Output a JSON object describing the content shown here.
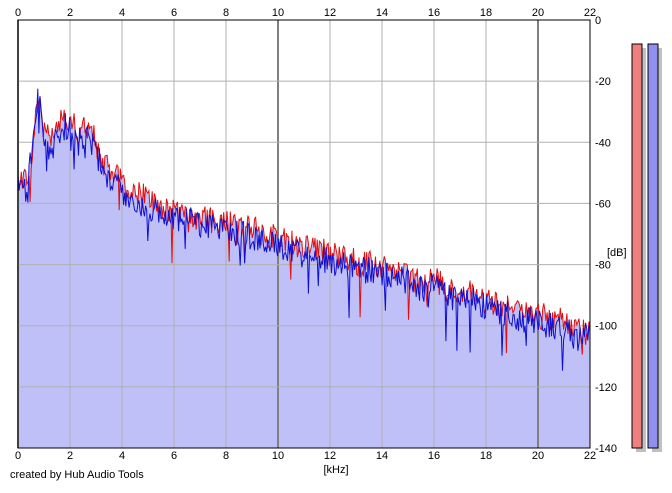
{
  "footer": {
    "credit": "created by Hub Audio Tools"
  },
  "chart_data": {
    "type": "area",
    "xlabel": "[kHz]",
    "ylabel": "[dB]",
    "xlim": [
      0,
      22
    ],
    "ylim": [
      -140,
      0
    ],
    "x_ticks": [
      "0",
      "2",
      "4",
      "6",
      "8",
      "10",
      "12",
      "14",
      "16",
      "18",
      "20",
      "22"
    ],
    "y_ticks": [
      "0",
      "-20",
      "-40",
      "-60",
      "-80",
      "-100",
      "-120",
      "-140"
    ],
    "grid": true,
    "series": [
      {
        "color": "#e01010",
        "x": [
          0,
          0.3,
          0.5,
          0.7,
          0.8,
          1.0,
          1.3,
          1.6,
          2.0,
          2.3,
          2.7,
          3.0,
          3.3,
          3.7,
          4.0,
          4.5,
          5.0,
          5.5,
          6.0,
          6.5,
          7.0,
          7.5,
          8.0,
          8.5,
          9.0,
          9.5,
          10.0,
          10.5,
          11.0,
          11.5,
          12.0,
          12.5,
          13.0,
          13.5,
          14.0,
          14.5,
          15.0,
          15.5,
          16.0,
          16.5,
          17.0,
          17.5,
          18.0,
          18.5,
          19.0,
          19.5,
          20.0,
          20.5,
          21.0,
          21.5,
          22.0
        ],
        "values": [
          -50,
          -52,
          -45,
          -30,
          -27,
          -35,
          -40,
          -33,
          -32,
          -37,
          -35,
          -40,
          -47,
          -50,
          -53,
          -57,
          -58,
          -62,
          -63,
          -63,
          -65,
          -66,
          -66,
          -67,
          -68,
          -70,
          -71,
          -73,
          -74,
          -75,
          -77,
          -78,
          -79,
          -80,
          -81,
          -82,
          -84,
          -86,
          -85,
          -88,
          -88,
          -90,
          -92,
          -93,
          -95,
          -96,
          -97,
          -97,
          -99,
          -101,
          -103
        ]
      },
      {
        "color": "#1010d0",
        "x": [
          0,
          0.3,
          0.5,
          0.7,
          0.8,
          1.0,
          1.3,
          1.6,
          2.0,
          2.3,
          2.7,
          3.0,
          3.3,
          3.7,
          4.0,
          4.5,
          5.0,
          5.5,
          6.0,
          6.5,
          7.0,
          7.5,
          8.0,
          8.5,
          9.0,
          9.5,
          10.0,
          10.5,
          11.0,
          11.5,
          12.0,
          12.5,
          13.0,
          13.5,
          14.0,
          14.5,
          15.0,
          15.5,
          16.0,
          16.5,
          17.0,
          17.5,
          18.0,
          18.5,
          19.0,
          19.5,
          20.0,
          20.5,
          21.0,
          21.5,
          22.0
        ],
        "values": [
          -52,
          -55,
          -44,
          -28,
          -25,
          -37,
          -43,
          -36,
          -34,
          -40,
          -38,
          -43,
          -50,
          -54,
          -56,
          -60,
          -61,
          -64,
          -65,
          -65,
          -67,
          -68,
          -69,
          -70,
          -71,
          -73,
          -74,
          -75,
          -77,
          -77,
          -79,
          -80,
          -81,
          -82,
          -83,
          -84,
          -86,
          -88,
          -87,
          -90,
          -91,
          -92,
          -94,
          -95,
          -97,
          -98,
          -99,
          -100,
          -101,
          -104,
          -103
        ]
      }
    ],
    "level_meters": [
      {
        "channel": "left",
        "color": "#f08080"
      },
      {
        "channel": "right",
        "color": "#9090f0"
      }
    ]
  }
}
